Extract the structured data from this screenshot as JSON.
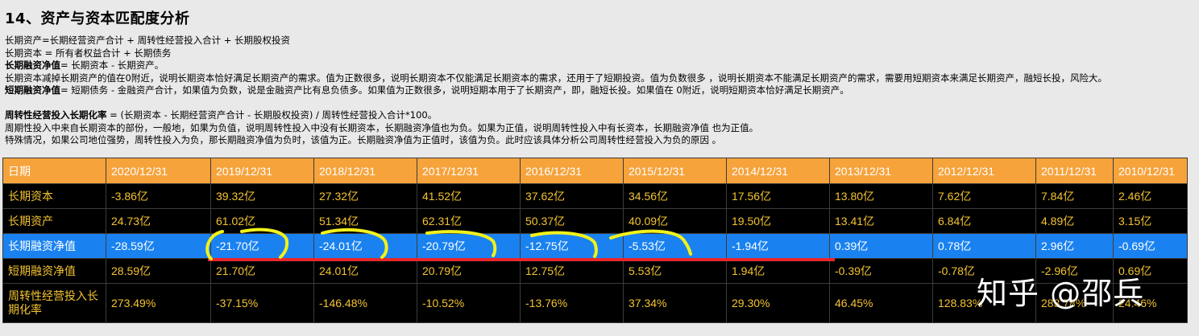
{
  "title": "14、资产与资本匹配度分析",
  "notes": {
    "l1": "长期资产=长期经营资产合计 + 周转性经营投入合计 + 长期股权投资",
    "l2": "长期资本 = 所有者权益合计 + 长期债务",
    "l3_bold": "长期融资净值",
    "l3_rest": "= 长期资本 - 长期资产。",
    "l4": "长期资本减掉长期资产的值在0附近，说明长期资本恰好满足长期资产的需求。值为正数很多，说明长期资本不仅能满足长期资本的需求，还用于了短期投资。值为负数很多 ，说明长期资本不能满足长期资产的需求，需要用短期资本来满足长期资产，融短长投，风险大。",
    "l5_bold": "短期融资净值",
    "l5_rest": "= 短期债务 - 金融资产合计，如果值为负数，说是金融资产比有息负债多。如果值为正数很多，说明短期本用于了长期资产，即，融短长投。如果值在 0附近，说明短期资本恰好满足长期资产。",
    "l6_bold": "周转性经营投入长期化率",
    "l6_rest": " = (长期资本 - 长期经营资产合计 - 长期股权投资) / 周转性经营投入合计*100。",
    "l7": "周期性投入中来自长期资本的部份，一般地，如果为负值，说明周转性投入中没有长期资本，长期融资净值也为负。如果为正值，说明周转性投入中有长资本，长期融资净值 也为正值。",
    "l8": "特殊情况，如果公司地位强势，周转性投入为负，那长期融资净值为负时，该值为正。长期融资净值为正值时，该值为负。此时应该具体分析公司周转性经营投入为负的原因 。"
  },
  "table": {
    "header": [
      "日期",
      "2020/12/31",
      "2019/12/31",
      "2018/12/31",
      "2017/12/31",
      "2016/12/31",
      "2015/12/31",
      "2014/12/31",
      "2013/12/31",
      "2012/12/31",
      "2011/12/31",
      "2010/12/31"
    ],
    "rows": [
      {
        "label": "长期资本",
        "values": [
          "-3.86亿",
          "39.32亿",
          "27.32亿",
          "41.52亿",
          "37.62亿",
          "34.56亿",
          "17.56亿",
          "13.80亿",
          "7.62亿",
          "7.84亿",
          "2.46亿"
        ]
      },
      {
        "label": "长期资产",
        "values": [
          "24.73亿",
          "61.02亿",
          "51.34亿",
          "62.31亿",
          "50.37亿",
          "40.09亿",
          "19.50亿",
          "13.41亿",
          "6.84亿",
          "4.89亿",
          "3.15亿"
        ]
      },
      {
        "label": "长期融资净值",
        "values": [
          "-28.59亿",
          "-21.70亿",
          "-24.01亿",
          "-20.79亿",
          "-12.75亿",
          "-5.53亿",
          "-1.94亿",
          "0.39亿",
          "0.78亿",
          "2.96亿",
          "-0.69亿"
        ]
      },
      {
        "label": "短期融资净值",
        "values": [
          "28.59亿",
          "21.70亿",
          "24.01亿",
          "20.79亿",
          "12.75亿",
          "5.53亿",
          "1.94亿",
          "-0.39亿",
          "-0.78亿",
          "-2.96亿",
          "0.69亿"
        ]
      },
      {
        "label": "周转性经营投入长期化率",
        "values": [
          "273.49%",
          "-37.15%",
          "-146.48%",
          "-10.52%",
          "-13.76%",
          "37.34%",
          "29.30%",
          "46.45%",
          "128.83%",
          "283.78%",
          "24.46%"
        ]
      }
    ]
  },
  "watermark": "知乎 @邵兵",
  "colors": {
    "header_bg": "#f6a33c",
    "row_bg": "#000000",
    "row_text": "#f4c431",
    "highlight_bg": "#1a82f0",
    "annotation_yellow": "#f2f21a",
    "annotation_red": "#e8272b"
  }
}
